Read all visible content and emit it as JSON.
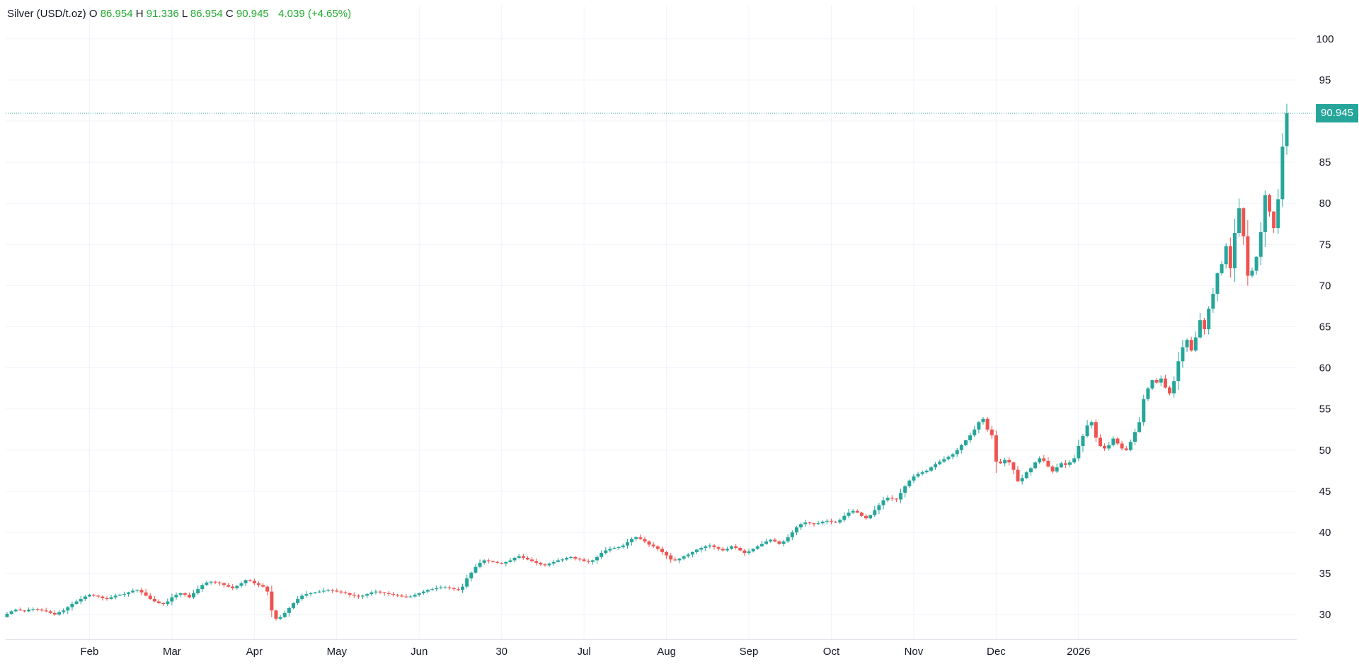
{
  "header": {
    "symbol": "Silver (USD/t.oz)",
    "open_label": "O",
    "open": "86.954",
    "high_label": "H",
    "high": "91.336",
    "low_label": "L",
    "low": "86.954",
    "close_label": "C",
    "close": "90.945",
    "change": "4.039",
    "change_pct": "(+4.65%)"
  },
  "price_tag": "90.945",
  "colors": {
    "up": "#26a69a",
    "down": "#ef5350",
    "grid": "#f0f3fa",
    "axis_text": "#131722",
    "last_line": "#26a69a",
    "legend_values": "#22ab2e"
  },
  "chart_data": {
    "type": "candlestick",
    "title": "Silver (USD/t.oz)",
    "ylim": [
      27,
      103
    ],
    "y_ticks": [
      30,
      35,
      40,
      45,
      50,
      55,
      60,
      65,
      70,
      75,
      80,
      85,
      90,
      95,
      100
    ],
    "y_tick_labels": [
      "30",
      "35",
      "40",
      "45",
      "50",
      "55",
      "60",
      "65",
      "70",
      "75",
      "80",
      "85",
      "",
      "95",
      "100"
    ],
    "x_tick_labels": [
      "Feb",
      "Mar",
      "Apr",
      "May",
      "Jun",
      "30",
      "Jul",
      "Aug",
      "Sep",
      "Oct",
      "Nov",
      "Dec",
      "2026"
    ],
    "x_tick_index": [
      19,
      38,
      57,
      76,
      95,
      114,
      133,
      152,
      171,
      190,
      209,
      228,
      247
    ],
    "grid": true,
    "last_price": 90.945,
    "closes": [
      30.1,
      30.4,
      30.6,
      30.5,
      30.4,
      30.6,
      30.7,
      30.6,
      30.5,
      30.4,
      30.2,
      30.0,
      30.3,
      30.5,
      30.9,
      31.3,
      31.6,
      31.9,
      32.2,
      32.4,
      32.3,
      32.2,
      32.0,
      31.9,
      32.1,
      32.3,
      32.4,
      32.5,
      32.7,
      32.9,
      33.0,
      32.7,
      32.3,
      31.9,
      31.6,
      31.4,
      31.3,
      31.6,
      32.1,
      32.4,
      32.6,
      32.4,
      32.1,
      32.6,
      33.1,
      33.6,
      33.9,
      34.0,
      33.9,
      33.8,
      33.6,
      33.4,
      33.2,
      33.5,
      33.8,
      34.2,
      34.1,
      33.8,
      33.6,
      33.4,
      32.8,
      30.5,
      29.5,
      29.7,
      30.2,
      30.8,
      31.4,
      31.9,
      32.3,
      32.5,
      32.6,
      32.7,
      32.8,
      32.9,
      33.0,
      32.9,
      32.8,
      32.7,
      32.6,
      32.4,
      32.3,
      32.2,
      32.3,
      32.5,
      32.7,
      32.8,
      32.7,
      32.6,
      32.5,
      32.4,
      32.3,
      32.2,
      32.1,
      32.2,
      32.4,
      32.6,
      32.8,
      33.0,
      33.1,
      33.2,
      33.3,
      33.3,
      33.2,
      33.1,
      33.0,
      33.4,
      34.4,
      35.1,
      35.8,
      36.3,
      36.6,
      36.5,
      36.4,
      36.3,
      36.2,
      36.4,
      36.6,
      36.9,
      37.1,
      36.9,
      36.7,
      36.5,
      36.3,
      36.1,
      36.0,
      36.2,
      36.4,
      36.6,
      36.7,
      36.9,
      37.0,
      36.8,
      36.7,
      36.5,
      36.4,
      36.6,
      37.0,
      37.5,
      37.8,
      38.0,
      38.1,
      38.2,
      38.4,
      38.8,
      39.2,
      39.4,
      39.2,
      38.9,
      38.5,
      38.3,
      38.0,
      37.6,
      37.2,
      36.7,
      36.6,
      36.8,
      37.1,
      37.3,
      37.6,
      37.9,
      38.1,
      38.3,
      38.4,
      38.2,
      38.0,
      37.8,
      38.0,
      38.3,
      38.1,
      37.8,
      37.5,
      37.7,
      38.0,
      38.3,
      38.6,
      38.9,
      39.1,
      38.9,
      38.6,
      38.9,
      39.4,
      40.0,
      40.6,
      41.0,
      41.2,
      41.1,
      41.0,
      41.1,
      41.3,
      41.4,
      41.3,
      41.2,
      41.5,
      42.0,
      42.4,
      42.6,
      42.4,
      42.0,
      41.7,
      42.1,
      42.7,
      43.3,
      43.9,
      44.2,
      44.1,
      44.0,
      44.8,
      45.6,
      46.3,
      46.8,
      47.1,
      47.3,
      47.5,
      47.9,
      48.3,
      48.6,
      48.9,
      49.2,
      49.5,
      50.0,
      50.6,
      51.2,
      51.8,
      52.5,
      53.4,
      53.8,
      52.5,
      51.8,
      48.6,
      48.4,
      48.8,
      48.5,
      47.6,
      46.2,
      46.6,
      47.3,
      47.8,
      48.5,
      49.0,
      48.7,
      48.0,
      47.4,
      47.9,
      48.4,
      48.2,
      48.5,
      49.0,
      50.5,
      51.7,
      53.0,
      53.4,
      51.5,
      50.5,
      50.2,
      50.6,
      51.4,
      50.8,
      50.2,
      50.0,
      51.0,
      52.2,
      53.4,
      56.2,
      57.5,
      58.5,
      58.2,
      58.7,
      57.6,
      56.9,
      58.4,
      60.8,
      62.5,
      63.4,
      62.1,
      63.7,
      65.8,
      64.7,
      67.2,
      69.0,
      71.5,
      72.6,
      74.8,
      72.1,
      76.4,
      79.4,
      76.0,
      71.2,
      71.8,
      73.5,
      76.5,
      81.0,
      79.0,
      77.0,
      80.5,
      86.9,
      90.945
    ]
  }
}
